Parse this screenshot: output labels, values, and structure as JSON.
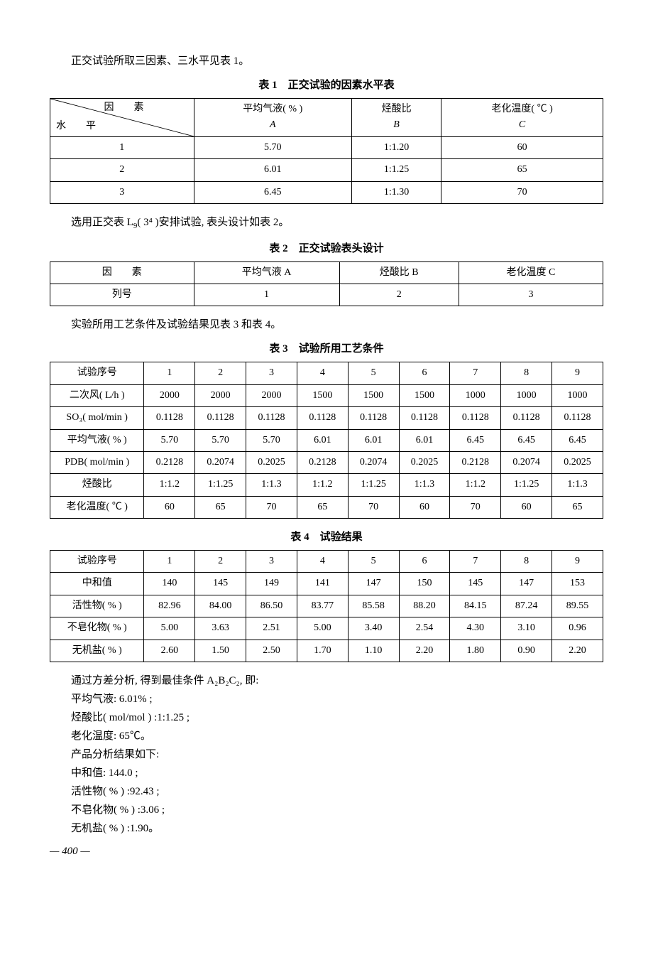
{
  "intro1": "正交试验所取三因素、三水平见表 1。",
  "table1": {
    "caption": "表 1　正交试验的因素水平表",
    "diag_top": "因　　素",
    "diag_bot": "水　　平",
    "headers": [
      {
        "line1": "平均气液( % )",
        "line2": "A"
      },
      {
        "line1": "烃酸比",
        "line2": "B"
      },
      {
        "line1": "老化温度( ℃ )",
        "line2": "C"
      }
    ],
    "rows": [
      {
        "level": "1",
        "vals": [
          "5.70",
          "1:1.20",
          "60"
        ]
      },
      {
        "level": "2",
        "vals": [
          "6.01",
          "1:1.25",
          "65"
        ]
      },
      {
        "level": "3",
        "vals": [
          "6.45",
          "1:1.30",
          "70"
        ]
      }
    ]
  },
  "intro2_pre": "选用正交表 L",
  "intro2_sub": "9",
  "intro2_sup": "( 3⁴ )",
  "intro2_post": "安排试验, 表头设计如表 2。",
  "table2": {
    "caption": "表 2　正交试验表头设计",
    "row1": [
      "因　　素",
      "平均气液 A",
      "烃酸比 B",
      "老化温度 C"
    ],
    "row2": [
      "列号",
      "1",
      "2",
      "3"
    ]
  },
  "intro3": "实验所用工艺条件及试验结果见表 3 和表 4。",
  "table3": {
    "caption": "表 3　试验所用工艺条件",
    "headers": [
      "试验序号",
      "1",
      "2",
      "3",
      "4",
      "5",
      "6",
      "7",
      "8",
      "9"
    ],
    "rows": [
      {
        "label": "二次风( L/h )",
        "vals": [
          "2000",
          "2000",
          "2000",
          "1500",
          "1500",
          "1500",
          "1000",
          "1000",
          "1000"
        ]
      },
      {
        "label": "SO₃( mol/min )",
        "vals": [
          "0.1128",
          "0.1128",
          "0.1128",
          "0.1128",
          "0.1128",
          "0.1128",
          "0.1128",
          "0.1128",
          "0.1128"
        ]
      },
      {
        "label": "平均气液( % )",
        "vals": [
          "5.70",
          "5.70",
          "5.70",
          "6.01",
          "6.01",
          "6.01",
          "6.45",
          "6.45",
          "6.45"
        ]
      },
      {
        "label": "PDB( mol/min )",
        "vals": [
          "0.2128",
          "0.2074",
          "0.2025",
          "0.2128",
          "0.2074",
          "0.2025",
          "0.2128",
          "0.2074",
          "0.2025"
        ]
      },
      {
        "label": "烃酸比",
        "vals": [
          "1:1.2",
          "1:1.25",
          "1:1.3",
          "1:1.2",
          "1:1.25",
          "1:1.3",
          "1:1.2",
          "1:1.25",
          "1:1.3"
        ]
      },
      {
        "label": "老化温度( ℃ )",
        "vals": [
          "60",
          "65",
          "70",
          "65",
          "70",
          "60",
          "70",
          "60",
          "65"
        ]
      }
    ]
  },
  "table4": {
    "caption": "表 4　试验结果",
    "headers": [
      "试验序号",
      "1",
      "2",
      "3",
      "4",
      "5",
      "6",
      "7",
      "8",
      "9"
    ],
    "rows": [
      {
        "label": "中和值",
        "vals": [
          "140",
          "145",
          "149",
          "141",
          "147",
          "150",
          "145",
          "147",
          "153"
        ]
      },
      {
        "label": "活性物( % )",
        "vals": [
          "82.96",
          "84.00",
          "86.50",
          "83.77",
          "85.58",
          "88.20",
          "84.15",
          "87.24",
          "89.55"
        ]
      },
      {
        "label": "不皂化物( % )",
        "vals": [
          "5.00",
          "3.63",
          "2.51",
          "5.00",
          "3.40",
          "2.54",
          "4.30",
          "3.10",
          "0.96"
        ]
      },
      {
        "label": "无机盐( % )",
        "vals": [
          "2.60",
          "1.50",
          "2.50",
          "1.70",
          "1.10",
          "2.20",
          "1.80",
          "0.90",
          "2.20"
        ]
      }
    ]
  },
  "results": {
    "lines": [
      "通过方差分析, 得到最佳条件 A₂B₂C₂, 即:",
      "平均气液: 6.01% ;",
      "烃酸比( mol/mol ) :1:1.25 ;",
      "老化温度: 65℃。",
      "产品分析结果如下:",
      "中和值: 144.0 ;",
      "活性物( % ) :92.43 ;",
      "不皂化物( % ) :3.06 ;",
      "无机盐( % ) :1.90。"
    ]
  },
  "pagenum": "— 400 —"
}
